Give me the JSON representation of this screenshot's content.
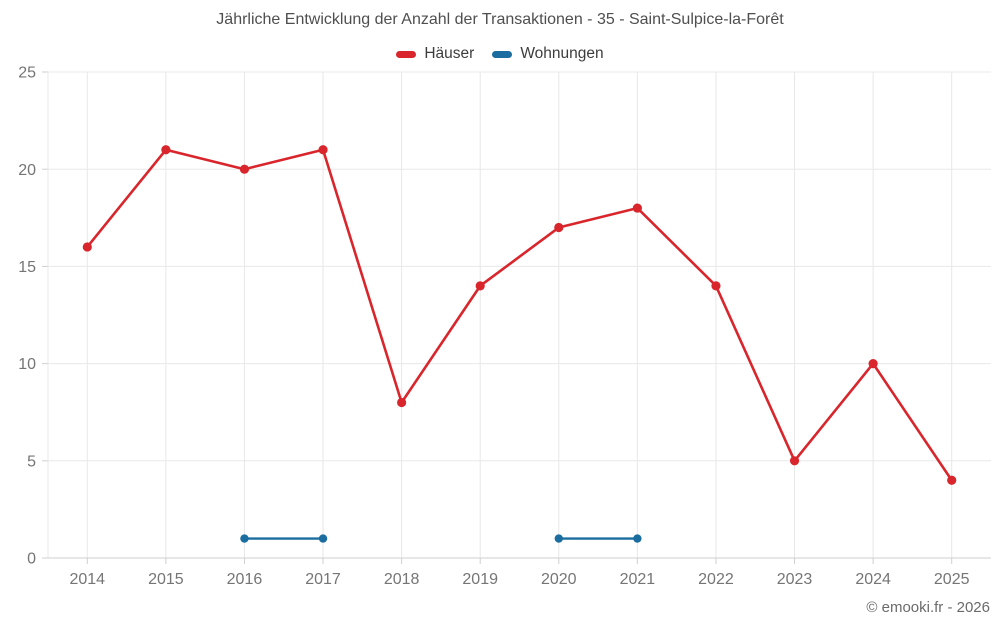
{
  "title": "Jährliche Entwicklung der Anzahl der Transaktionen - 35 - Saint-Sulpice-la-Forêt",
  "footer": "© emooki.fr - 2026",
  "chart_data": {
    "type": "line",
    "x": [
      "2014",
      "2015",
      "2016",
      "2017",
      "2018",
      "2019",
      "2020",
      "2021",
      "2022",
      "2023",
      "2024",
      "2025"
    ],
    "series": [
      {
        "name": "Häuser",
        "color": "#d9262c",
        "values": [
          16,
          21,
          20,
          21,
          8,
          14,
          17,
          18,
          14,
          5,
          10,
          4
        ]
      },
      {
        "name": "Wohnungen",
        "color": "#1a6d9e",
        "values": [
          null,
          null,
          1,
          1,
          null,
          null,
          1,
          1,
          null,
          null,
          null,
          null
        ]
      }
    ],
    "ylim": [
      0,
      25
    ],
    "yticks": [
      0,
      5,
      10,
      15,
      20,
      25
    ],
    "grid": true,
    "legend_position": "top",
    "colors": {
      "grid": "#e8e8e8",
      "axis": "#cfcfcf",
      "tick_label": "#757575",
      "title": "#4f4f4f",
      "legend_text": "#3d3d3d",
      "footer": "#6b6b6b",
      "background": "#ffffff"
    }
  }
}
